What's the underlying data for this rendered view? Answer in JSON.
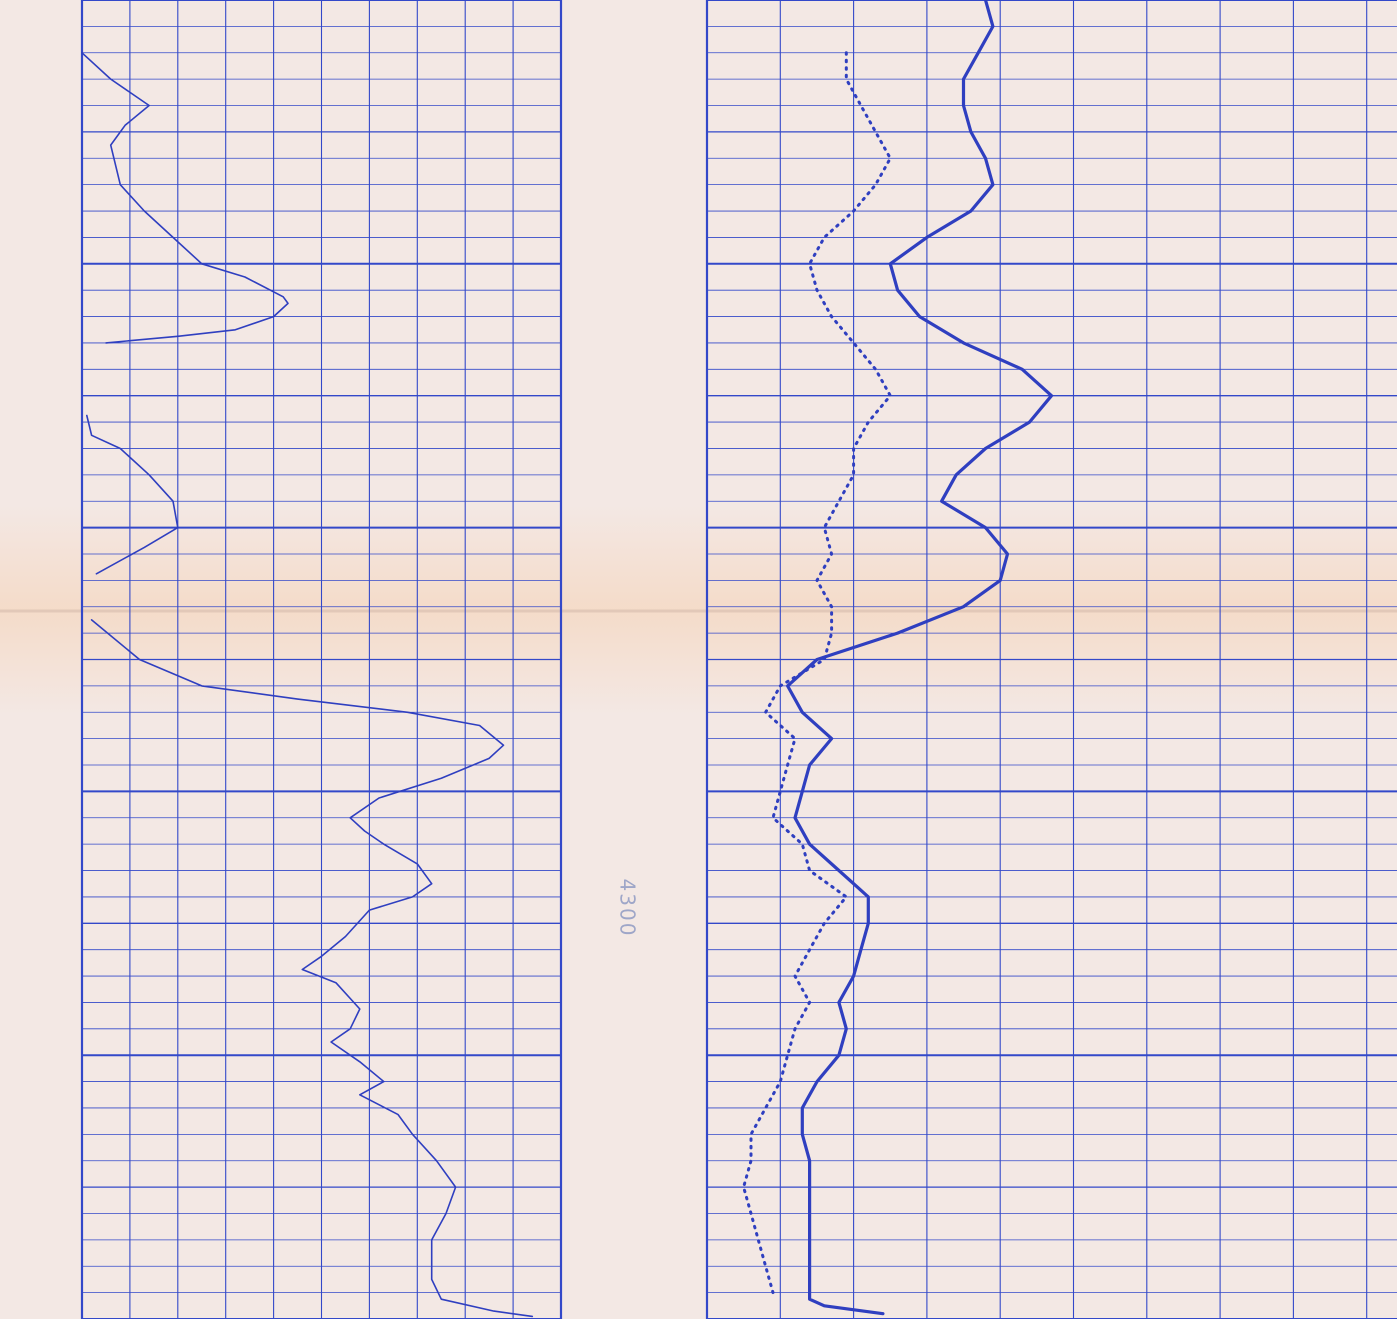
{
  "chart_data": {
    "type": "line",
    "title": "",
    "colors": {
      "paper": "#f3e8e4",
      "grid": "#3348c9",
      "trace": "#2f3fc0",
      "fold_stain": "#f5d9c4"
    },
    "depth_marker": "4300",
    "y_axis": {
      "reversed": true,
      "ylim": [
        0,
        100
      ],
      "major_step": 20,
      "minor_step": 2
    },
    "tracks": [
      {
        "name": "",
        "xlim": [
          0,
          10
        ],
        "grid": {
          "major_step": 1,
          "minor_step": 0.5
        },
        "series": [
          {
            "name": "",
            "style": "thin",
            "points": [
              [
                0,
                4
              ],
              [
                0.6,
                6
              ],
              [
                1.4,
                8
              ],
              [
                0.9,
                9.5
              ],
              [
                0.6,
                11
              ],
              [
                0.8,
                14
              ],
              [
                1.3,
                16
              ],
              [
                1.9,
                18
              ],
              [
                2.5,
                20
              ],
              [
                3.4,
                21
              ],
              [
                4.2,
                22.5
              ],
              [
                4.3,
                23
              ],
              [
                4.0,
                24
              ],
              [
                3.2,
                25
              ],
              [
                2.0,
                25.5
              ],
              [
                0.5,
                26
              ]
            ]
          },
          {
            "name": "",
            "style": "thin",
            "points": [
              [
                0.1,
                31.5
              ],
              [
                0.2,
                33
              ],
              [
                0.8,
                34
              ],
              [
                1.4,
                36
              ],
              [
                1.9,
                38
              ],
              [
                2.0,
                40
              ],
              [
                1.3,
                41.5
              ],
              [
                0.3,
                43.5
              ]
            ]
          },
          {
            "name": "",
            "style": "thin",
            "points": [
              [
                0.2,
                47
              ],
              [
                1.2,
                50
              ],
              [
                2.5,
                52
              ],
              [
                4.5,
                53
              ],
              [
                6.8,
                54
              ],
              [
                8.3,
                55
              ],
              [
                8.8,
                56.5
              ],
              [
                8.5,
                57.5
              ],
              [
                7.5,
                59
              ],
              [
                6.2,
                60.5
              ],
              [
                5.6,
                62
              ],
              [
                5.9,
                63
              ],
              [
                6.3,
                64
              ],
              [
                7.0,
                65.5
              ],
              [
                7.3,
                67
              ],
              [
                6.9,
                68
              ],
              [
                6.0,
                69
              ],
              [
                5.5,
                71
              ],
              [
                5.0,
                72.5
              ],
              [
                4.6,
                73.5
              ],
              [
                5.3,
                74.5
              ],
              [
                5.8,
                76.5
              ],
              [
                5.6,
                78
              ],
              [
                5.2,
                79
              ],
              [
                5.8,
                80.5
              ],
              [
                6.3,
                82
              ],
              [
                5.8,
                83
              ],
              [
                6.6,
                84.5
              ],
              [
                6.9,
                86
              ],
              [
                7.4,
                88
              ],
              [
                7.8,
                90
              ],
              [
                7.6,
                92
              ],
              [
                7.3,
                94
              ],
              [
                7.3,
                97
              ],
              [
                7.5,
                98.5
              ],
              [
                8.6,
                99.4
              ],
              [
                9.4,
                99.8
              ]
            ]
          }
        ]
      },
      {
        "name": "",
        "xlim": [
          0,
          10
        ],
        "grid": {
          "major_step": 1,
          "minor_step": 0.5
        },
        "series": [
          {
            "name": "",
            "style": "thick",
            "points": [
              [
                3.8,
                0
              ],
              [
                3.9,
                2
              ],
              [
                3.7,
                4
              ],
              [
                3.5,
                6
              ],
              [
                3.5,
                8
              ],
              [
                3.6,
                10
              ],
              [
                3.8,
                12
              ],
              [
                3.9,
                14
              ],
              [
                3.6,
                16
              ],
              [
                3.0,
                18
              ],
              [
                2.5,
                20
              ],
              [
                2.6,
                22
              ],
              [
                2.9,
                24
              ],
              [
                3.5,
                26
              ],
              [
                4.3,
                28
              ],
              [
                4.7,
                30
              ],
              [
                4.4,
                32
              ],
              [
                3.8,
                34
              ],
              [
                3.4,
                36
              ],
              [
                3.2,
                38
              ],
              [
                3.8,
                40
              ],
              [
                4.1,
                42
              ],
              [
                4.0,
                44
              ],
              [
                3.5,
                46
              ],
              [
                2.6,
                48
              ],
              [
                1.5,
                50
              ],
              [
                1.1,
                52
              ],
              [
                1.3,
                54
              ],
              [
                1.7,
                56
              ],
              [
                1.4,
                58
              ],
              [
                1.3,
                60
              ],
              [
                1.2,
                62
              ],
              [
                1.4,
                64
              ],
              [
                1.8,
                66
              ],
              [
                2.2,
                68
              ],
              [
                2.2,
                70
              ],
              [
                2.1,
                72
              ],
              [
                2.0,
                74
              ],
              [
                1.8,
                76
              ],
              [
                1.9,
                78
              ],
              [
                1.8,
                80
              ],
              [
                1.5,
                82
              ],
              [
                1.3,
                84
              ],
              [
                1.3,
                86
              ],
              [
                1.4,
                88
              ],
              [
                1.4,
                90
              ],
              [
                1.4,
                92
              ],
              [
                1.4,
                94
              ],
              [
                1.4,
                97
              ],
              [
                1.4,
                98.5
              ],
              [
                1.6,
                99
              ],
              [
                2.4,
                99.6
              ]
            ]
          },
          {
            "name": "",
            "style": "dotted",
            "points": [
              [
                1.9,
                4
              ],
              [
                1.9,
                6
              ],
              [
                2.1,
                8
              ],
              [
                2.3,
                10
              ],
              [
                2.5,
                12
              ],
              [
                2.3,
                14
              ],
              [
                2.0,
                16
              ],
              [
                1.6,
                18
              ],
              [
                1.4,
                20
              ],
              [
                1.5,
                22
              ],
              [
                1.7,
                24
              ],
              [
                2.0,
                26
              ],
              [
                2.3,
                28
              ],
              [
                2.5,
                30
              ],
              [
                2.2,
                32
              ],
              [
                2.0,
                34
              ],
              [
                2.0,
                36
              ],
              [
                1.8,
                38
              ],
              [
                1.6,
                40
              ],
              [
                1.7,
                42
              ],
              [
                1.5,
                44
              ],
              [
                1.7,
                46
              ],
              [
                1.7,
                48
              ],
              [
                1.6,
                50
              ],
              [
                1.0,
                52
              ],
              [
                0.8,
                54
              ],
              [
                1.2,
                56
              ],
              [
                1.1,
                58
              ],
              [
                1.0,
                60
              ],
              [
                0.9,
                62
              ],
              [
                1.3,
                64
              ],
              [
                1.4,
                66
              ],
              [
                1.9,
                68
              ],
              [
                1.6,
                70
              ],
              [
                1.4,
                72
              ],
              [
                1.2,
                74
              ],
              [
                1.4,
                76
              ],
              [
                1.2,
                78
              ],
              [
                1.1,
                80
              ],
              [
                1.0,
                82
              ],
              [
                0.8,
                84
              ],
              [
                0.6,
                86
              ],
              [
                0.6,
                88
              ],
              [
                0.5,
                90
              ],
              [
                0.6,
                92
              ],
              [
                0.7,
                94
              ],
              [
                0.8,
                96
              ],
              [
                0.9,
                98
              ]
            ]
          }
        ]
      }
    ]
  }
}
